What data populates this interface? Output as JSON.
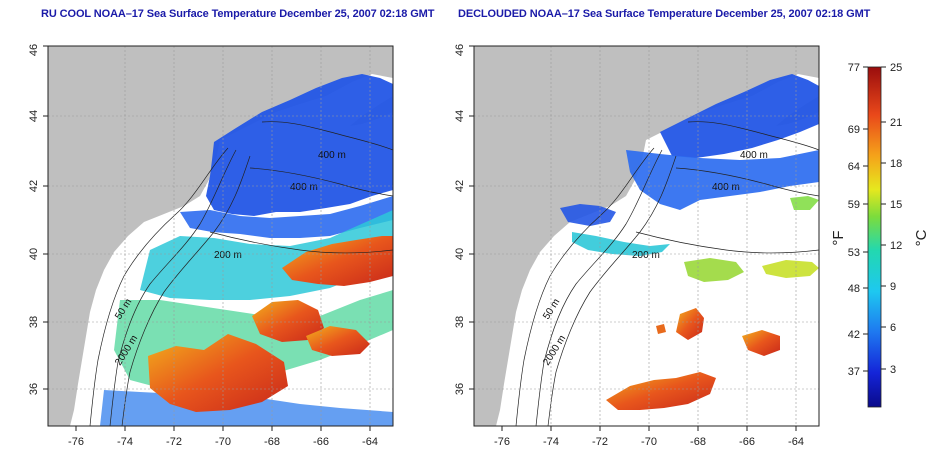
{
  "panels": [
    {
      "title": "RU COOL NOAA–17 Sea Surface Temperature December 25, 2007 02:18 GMT",
      "isobath_labels": [
        "400 m",
        "400 m",
        "200 m",
        "50 m",
        "2000 m"
      ]
    },
    {
      "title": "DECLOUDED NOAA–17 Sea Surface Temperature December 25, 2007 02:18 GMT",
      "isobath_labels": [
        "400 m",
        "400 m",
        "200 m",
        "50 m",
        "2000 m"
      ]
    }
  ],
  "axes": {
    "x_ticks": [
      "-76",
      "-74",
      "-72",
      "-70",
      "-68",
      "-66",
      "-64"
    ],
    "y_ticks": [
      "36",
      "38",
      "40",
      "42",
      "44",
      "46"
    ],
    "xlim": [
      -77,
      -63
    ],
    "ylim": [
      35,
      46
    ]
  },
  "colorbar": {
    "fahrenheit_labels": [
      "77",
      "69",
      "64",
      "59",
      "53",
      "48",
      "42",
      "37"
    ],
    "celsius_labels": [
      "25",
      "21",
      "18",
      "15",
      "12",
      "9",
      "6",
      "3"
    ],
    "fahrenheit_unit": "°F",
    "celsius_unit": "°C",
    "range_c": [
      0,
      25
    ]
  },
  "colors": {
    "land": "#bfbfbf",
    "sea_masked": "#ffffff",
    "cold": "#1f4fe0",
    "warm": "#e8461c",
    "title": "#1a1aa8"
  }
}
